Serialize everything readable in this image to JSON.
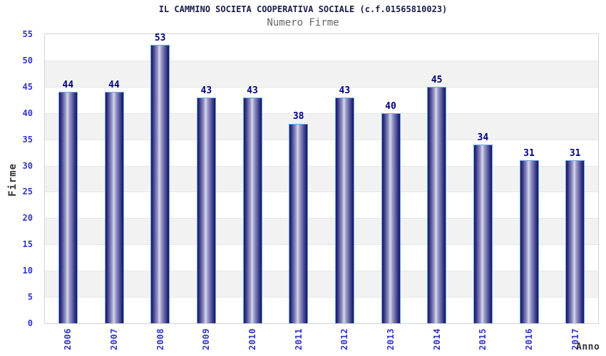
{
  "header": {
    "title": "IL CAMMINO SOCIETA COOPERATIVA SOCIALE (c.f.01565810023)",
    "subtitle": "Numero Firme"
  },
  "chart_data": {
    "type": "bar",
    "title": "IL CAMMINO SOCIETA COOPERATIVA SOCIALE (c.f.01565810023)",
    "subtitle": "Numero Firme",
    "xlabel": "Anno",
    "ylabel": "Firme",
    "categories": [
      "2006",
      "2007",
      "2008",
      "2009",
      "2010",
      "2011",
      "2012",
      "2013",
      "2014",
      "2015",
      "2016",
      "2017"
    ],
    "values": [
      44,
      44,
      53,
      43,
      43,
      38,
      43,
      40,
      45,
      34,
      31,
      31
    ],
    "ylim": [
      0,
      55
    ],
    "ytick_step": 5,
    "grid": true,
    "legend": "none",
    "band_fill": "alternating horizontal 5-unit bands",
    "colors": {
      "bar_dark": "#14145f",
      "bar_highlight": "#d8d8ec",
      "bar_border": "#6aa7e0",
      "axis_tick_label": "#3333cc",
      "value_label": "#00007d",
      "title": "#1b1b4a",
      "subtitle": "#666666",
      "axis_title": "#333333",
      "band_gray": "#f2f2f2",
      "plot_border": "#d4d4d4"
    }
  }
}
